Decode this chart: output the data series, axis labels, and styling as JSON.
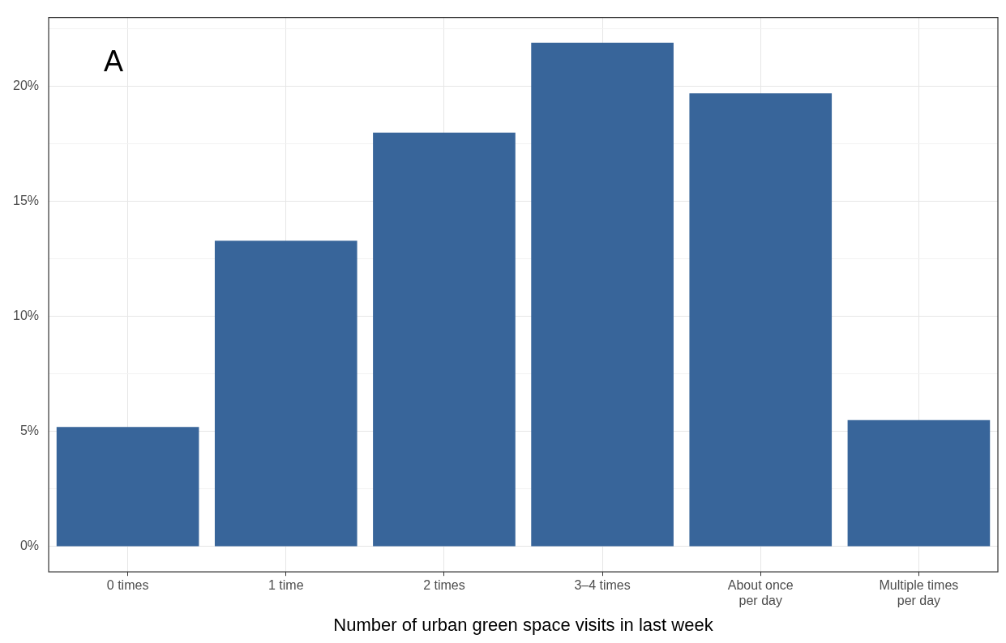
{
  "chart_data": {
    "type": "bar",
    "xlabel": "Number of urban green space visits in last week",
    "categories": [
      "0 times",
      "1 time",
      "2 times",
      "3–4 times",
      "About once\nper day",
      "Multiple times\nper day"
    ],
    "values": [
      5.2,
      13.3,
      18.0,
      21.9,
      19.7,
      5.5
    ],
    "color": "#38659a",
    "ylim": [
      -1.1,
      23.0
    ],
    "yticks": [
      {
        "value": 0,
        "label": "0%"
      },
      {
        "value": 2.5,
        "label": null
      },
      {
        "value": 5,
        "label": "5%"
      },
      {
        "value": 7.5,
        "label": null
      },
      {
        "value": 10,
        "label": "10%"
      },
      {
        "value": 12.5,
        "label": null
      },
      {
        "value": 15,
        "label": "15%"
      },
      {
        "value": 17.5,
        "label": null
      },
      {
        "value": 20,
        "label": "20%"
      },
      {
        "value": 22.5,
        "label": null
      }
    ],
    "grid": true,
    "annotations": [
      "A"
    ]
  }
}
